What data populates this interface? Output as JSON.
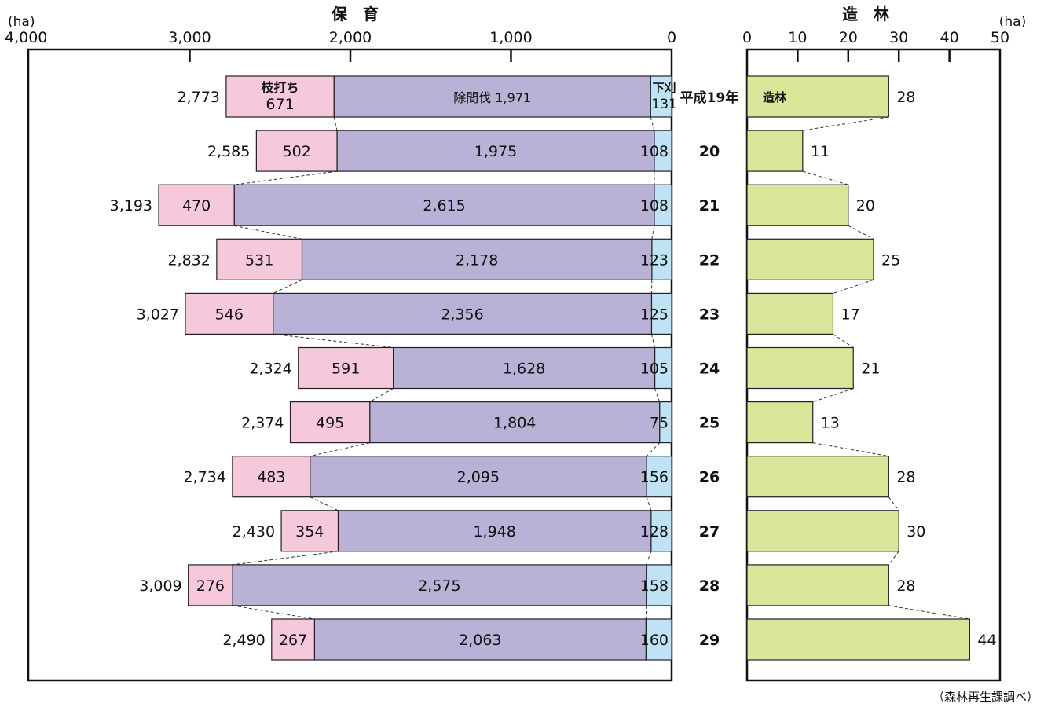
{
  "chart_data": [
    {
      "type": "bar",
      "orientation": "horizontal",
      "stacked": true,
      "title": "保　育",
      "unit": "(ha)",
      "x_ticks": [
        "4,000",
        "3,000",
        "2,000",
        "1,000",
        "0"
      ],
      "xlim": [
        0,
        4000
      ],
      "direction": "reversed (bars extend to the left)",
      "categories": [
        "平成19年",
        "20",
        "21",
        "22",
        "23",
        "24",
        "25",
        "26",
        "27",
        "28",
        "29"
      ],
      "series": [
        {
          "name": "下刈",
          "color": "#bfe3f5",
          "values": [
            131,
            108,
            108,
            123,
            125,
            105,
            75,
            156,
            128,
            158,
            160
          ],
          "labels": [
            "131",
            "108",
            "108",
            "123",
            "125",
            "105",
            "75",
            "156",
            "128",
            "158",
            "160"
          ]
        },
        {
          "name": "除間伐",
          "color": "#b9b1d6",
          "values": [
            1971,
            1975,
            2615,
            2178,
            2356,
            1628,
            1804,
            2095,
            1948,
            2575,
            2063
          ],
          "labels": [
            "除間伐 1,971",
            "1,975",
            "2,615",
            "2,178",
            "2,356",
            "1,628",
            "1,804",
            "2,095",
            "1,948",
            "2,575",
            "2,063"
          ]
        },
        {
          "name": "枝打ち",
          "color": "#f5c8dc",
          "values": [
            671,
            502,
            470,
            531,
            546,
            591,
            495,
            483,
            354,
            276,
            267
          ],
          "labels": [
            "671",
            "502",
            "470",
            "531",
            "546",
            "591",
            "495",
            "483",
            "354",
            "276",
            "267"
          ]
        }
      ],
      "totals": [
        2773,
        2585,
        3193,
        2832,
        3027,
        2324,
        2374,
        2734,
        2430,
        3009,
        2490
      ],
      "total_labels": [
        "2,773",
        "2,585",
        "3,193",
        "2,832",
        "3,027",
        "2,324",
        "2,374",
        "2,734",
        "2,430",
        "3,009",
        "2,490"
      ],
      "grid": false
    },
    {
      "type": "bar",
      "orientation": "horizontal",
      "title": "造　林",
      "unit": "(ha)",
      "x_ticks": [
        "0",
        "10",
        "20",
        "30",
        "40",
        "50"
      ],
      "xlim": [
        0,
        50
      ],
      "categories": [
        "平成19年",
        "20",
        "21",
        "22",
        "23",
        "24",
        "25",
        "26",
        "27",
        "28",
        "29"
      ],
      "series": [
        {
          "name": "造林",
          "color": "#d9e69a",
          "values": [
            28,
            11,
            20,
            25,
            17,
            21,
            13,
            28,
            30,
            28,
            44
          ],
          "labels": [
            "28",
            "11",
            "20",
            "25",
            "17",
            "21",
            "13",
            "28",
            "30",
            "28",
            "44"
          ]
        }
      ],
      "grid": false
    }
  ],
  "source": "（森林再生課調べ）"
}
